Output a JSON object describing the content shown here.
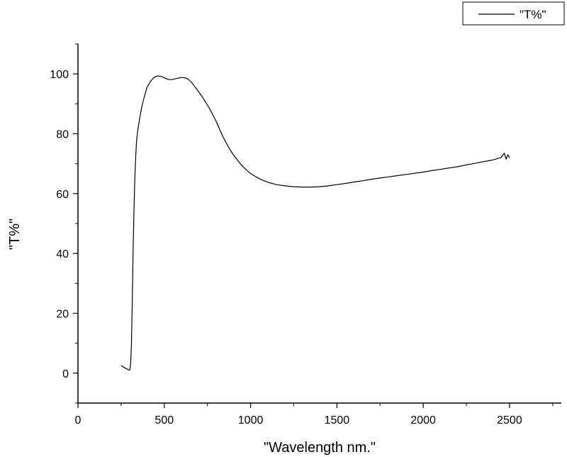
{
  "chart_data": {
    "type": "line",
    "title": "",
    "xlabel": "\"Wavelength nm.\"",
    "ylabel": "\"T%\"",
    "xlim": [
      0,
      2800
    ],
    "ylim": [
      -10,
      110
    ],
    "xticks": [
      0,
      500,
      1000,
      1500,
      2000,
      2500
    ],
    "xtick_labels": [
      "0",
      "500",
      "1000",
      "1500",
      "2000",
      "2500"
    ],
    "yticks": [
      0,
      20,
      40,
      60,
      80,
      100
    ],
    "ytick_labels": [
      "0",
      "20",
      "40",
      "60",
      "80",
      "100"
    ],
    "grid": false,
    "legend": {
      "position": "top-right",
      "entries": [
        "\"T%\""
      ]
    },
    "colors": {
      "line": "#000000",
      "axes": "#000000",
      "background": "#ffffff"
    },
    "series": [
      {
        "name": "\"T%\"",
        "x": [
          250,
          270,
          290,
          300,
          305,
          310,
          315,
          320,
          325,
          330,
          335,
          340,
          345,
          350,
          360,
          370,
          380,
          400,
          420,
          440,
          460,
          480,
          500,
          520,
          540,
          560,
          580,
          600,
          620,
          640,
          660,
          680,
          700,
          720,
          740,
          760,
          780,
          800,
          820,
          840,
          860,
          880,
          900,
          920,
          940,
          960,
          980,
          1000,
          1050,
          1100,
          1150,
          1200,
          1250,
          1300,
          1350,
          1400,
          1450,
          1500,
          1550,
          1600,
          1650,
          1700,
          1750,
          1800,
          1850,
          1900,
          1950,
          2000,
          2050,
          2100,
          2150,
          2200,
          2250,
          2300,
          2350,
          2400,
          2450,
          2470,
          2480,
          2490,
          2500
        ],
        "y": [
          2.5,
          1.8,
          1.2,
          1.0,
          3.0,
          10.0,
          25.0,
          42.0,
          56.0,
          66.0,
          73.0,
          78.0,
          80.5,
          82.5,
          86.0,
          89.0,
          91.5,
          95.5,
          97.5,
          98.8,
          99.3,
          99.2,
          98.7,
          98.2,
          98.1,
          98.3,
          98.6,
          98.8,
          98.7,
          98.2,
          97.0,
          95.5,
          94.0,
          92.3,
          90.5,
          88.6,
          86.5,
          84.2,
          81.6,
          79.0,
          76.8,
          74.8,
          73.0,
          71.5,
          70.0,
          68.8,
          67.7,
          66.7,
          65.0,
          63.8,
          63.0,
          62.6,
          62.3,
          62.2,
          62.2,
          62.3,
          62.6,
          63.0,
          63.4,
          63.9,
          64.3,
          64.8,
          65.2,
          65.6,
          66.0,
          66.4,
          66.8,
          67.2,
          67.7,
          68.1,
          68.6,
          69.0,
          69.6,
          70.1,
          70.7,
          71.2,
          72.0,
          73.5,
          71.5,
          73.0,
          72.0
        ]
      }
    ]
  }
}
